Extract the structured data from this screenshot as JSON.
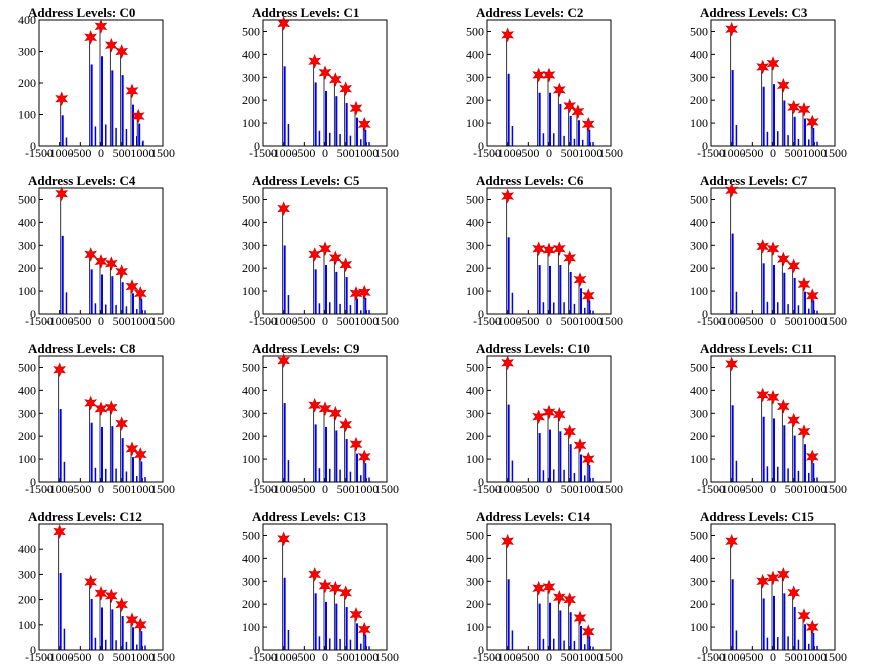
{
  "figure": {
    "layout": {
      "rows": 4,
      "cols": 4
    },
    "colors": {
      "histogram": "#0000ff",
      "histogram_outline": "#000000",
      "peak_marker": "#ff0000",
      "axis": "#000000"
    },
    "marker": "red-star"
  },
  "chart_data": [
    {
      "type": "bar",
      "title": "Address Levels: C0",
      "xlim": [
        -1500,
        1500
      ],
      "ylim": [
        0,
        400
      ],
      "xticks": [
        -1500,
        -1000,
        -500,
        0,
        500,
        1000,
        1500
      ],
      "yticks": [
        0,
        100,
        200,
        300,
        400
      ],
      "peaks": [
        {
          "x": -950,
          "y": 150
        },
        {
          "x": -250,
          "y": 345
        },
        {
          "x": 0,
          "y": 380
        },
        {
          "x": 250,
          "y": 320
        },
        {
          "x": 500,
          "y": 300
        },
        {
          "x": 750,
          "y": 175
        },
        {
          "x": 900,
          "y": 95
        }
      ]
    },
    {
      "type": "bar",
      "title": "Address Levels: C1",
      "xlim": [
        -1500,
        1500
      ],
      "ylim": [
        0,
        550
      ],
      "xticks": [
        -1500,
        -1000,
        -500,
        0,
        500,
        1000,
        1500
      ],
      "yticks": [
        0,
        100,
        200,
        300,
        400,
        500
      ],
      "peaks": [
        {
          "x": -1000,
          "y": 535
        },
        {
          "x": -250,
          "y": 370
        },
        {
          "x": 0,
          "y": 320
        },
        {
          "x": 250,
          "y": 290
        },
        {
          "x": 500,
          "y": 250
        },
        {
          "x": 750,
          "y": 165
        },
        {
          "x": 950,
          "y": 95
        }
      ]
    },
    {
      "type": "bar",
      "title": "Address Levels: C2",
      "xlim": [
        -1500,
        1500
      ],
      "ylim": [
        0,
        550
      ],
      "xticks": [
        -1500,
        -1000,
        -500,
        0,
        500,
        1000,
        1500
      ],
      "yticks": [
        0,
        100,
        200,
        300,
        400,
        500
      ],
      "peaks": [
        {
          "x": -1000,
          "y": 485
        },
        {
          "x": -250,
          "y": 310
        },
        {
          "x": 0,
          "y": 310
        },
        {
          "x": 250,
          "y": 245
        },
        {
          "x": 500,
          "y": 175
        },
        {
          "x": 700,
          "y": 150
        },
        {
          "x": 950,
          "y": 95
        }
      ]
    },
    {
      "type": "bar",
      "title": "Address Levels: C3",
      "xlim": [
        -1500,
        1500
      ],
      "ylim": [
        0,
        550
      ],
      "xticks": [
        -1500,
        -1000,
        -500,
        0,
        500,
        1000,
        1500
      ],
      "yticks": [
        0,
        100,
        200,
        300,
        400,
        500
      ],
      "peaks": [
        {
          "x": -1000,
          "y": 510
        },
        {
          "x": -250,
          "y": 345
        },
        {
          "x": 0,
          "y": 360
        },
        {
          "x": 250,
          "y": 265
        },
        {
          "x": 500,
          "y": 170
        },
        {
          "x": 750,
          "y": 160
        },
        {
          "x": 950,
          "y": 105
        }
      ]
    },
    {
      "type": "bar",
      "title": "Address Levels: C4",
      "xlim": [
        -1500,
        1500
      ],
      "ylim": [
        0,
        550
      ],
      "xticks": [
        -1500,
        -1000,
        -500,
        0,
        500,
        1000,
        1500
      ],
      "yticks": [
        0,
        100,
        200,
        300,
        400,
        500
      ],
      "peaks": [
        {
          "x": -950,
          "y": 525
        },
        {
          "x": -250,
          "y": 260
        },
        {
          "x": 0,
          "y": 230
        },
        {
          "x": 250,
          "y": 220
        },
        {
          "x": 500,
          "y": 185
        },
        {
          "x": 750,
          "y": 120
        },
        {
          "x": 950,
          "y": 90
        }
      ]
    },
    {
      "type": "bar",
      "title": "Address Levels: C5",
      "xlim": [
        -1500,
        1500
      ],
      "ylim": [
        0,
        550
      ],
      "xticks": [
        -1500,
        -1000,
        -500,
        0,
        500,
        1000,
        1500
      ],
      "yticks": [
        0,
        100,
        200,
        300,
        400,
        500
      ],
      "peaks": [
        {
          "x": -1000,
          "y": 460
        },
        {
          "x": -250,
          "y": 260
        },
        {
          "x": 0,
          "y": 285
        },
        {
          "x": 250,
          "y": 245
        },
        {
          "x": 500,
          "y": 215
        },
        {
          "x": 750,
          "y": 90
        },
        {
          "x": 950,
          "y": 95
        }
      ]
    },
    {
      "type": "bar",
      "title": "Address Levels: C6",
      "xlim": [
        -1500,
        1500
      ],
      "ylim": [
        0,
        550
      ],
      "xticks": [
        -1500,
        -1000,
        -500,
        0,
        500,
        1000,
        1500
      ],
      "yticks": [
        0,
        100,
        200,
        300,
        400,
        500
      ],
      "peaks": [
        {
          "x": -1000,
          "y": 515
        },
        {
          "x": -250,
          "y": 285
        },
        {
          "x": 0,
          "y": 280
        },
        {
          "x": 250,
          "y": 285
        },
        {
          "x": 500,
          "y": 245
        },
        {
          "x": 750,
          "y": 150
        },
        {
          "x": 950,
          "y": 80
        }
      ]
    },
    {
      "type": "bar",
      "title": "Address Levels: C7",
      "xlim": [
        -1500,
        1500
      ],
      "ylim": [
        0,
        550
      ],
      "xticks": [
        -1500,
        -1000,
        -500,
        0,
        500,
        1000,
        1500
      ],
      "yticks": [
        0,
        100,
        200,
        300,
        400,
        500
      ],
      "peaks": [
        {
          "x": -1000,
          "y": 540
        },
        {
          "x": -250,
          "y": 295
        },
        {
          "x": 0,
          "y": 285
        },
        {
          "x": 250,
          "y": 240
        },
        {
          "x": 500,
          "y": 210
        },
        {
          "x": 750,
          "y": 130
        },
        {
          "x": 950,
          "y": 80
        }
      ]
    },
    {
      "type": "bar",
      "title": "Address Levels: C8",
      "xlim": [
        -1500,
        1500
      ],
      "ylim": [
        0,
        550
      ],
      "xticks": [
        -1500,
        -1000,
        -500,
        0,
        500,
        1000,
        1500
      ],
      "yticks": [
        0,
        100,
        200,
        300,
        400,
        500
      ],
      "peaks": [
        {
          "x": -1000,
          "y": 490
        },
        {
          "x": -250,
          "y": 345
        },
        {
          "x": 0,
          "y": 320
        },
        {
          "x": 250,
          "y": 325
        },
        {
          "x": 500,
          "y": 255
        },
        {
          "x": 750,
          "y": 145
        },
        {
          "x": 950,
          "y": 120
        }
      ]
    },
    {
      "type": "bar",
      "title": "Address Levels: C9",
      "xlim": [
        -1500,
        1500
      ],
      "ylim": [
        0,
        550
      ],
      "xticks": [
        -1500,
        -1000,
        -500,
        0,
        500,
        1000,
        1500
      ],
      "yticks": [
        0,
        100,
        200,
        300,
        400,
        500
      ],
      "peaks": [
        {
          "x": -1000,
          "y": 530
        },
        {
          "x": -250,
          "y": 335
        },
        {
          "x": 0,
          "y": 320
        },
        {
          "x": 250,
          "y": 300
        },
        {
          "x": 500,
          "y": 250
        },
        {
          "x": 750,
          "y": 165
        },
        {
          "x": 950,
          "y": 110
        }
      ]
    },
    {
      "type": "bar",
      "title": "Address Levels: C10",
      "xlim": [
        -1500,
        1500
      ],
      "ylim": [
        0,
        550
      ],
      "xticks": [
        -1500,
        -1000,
        -500,
        0,
        500,
        1000,
        1500
      ],
      "yticks": [
        0,
        100,
        200,
        300,
        400,
        500
      ],
      "peaks": [
        {
          "x": -1000,
          "y": 520
        },
        {
          "x": -250,
          "y": 285
        },
        {
          "x": 0,
          "y": 305
        },
        {
          "x": 250,
          "y": 295
        },
        {
          "x": 500,
          "y": 220
        },
        {
          "x": 750,
          "y": 160
        },
        {
          "x": 950,
          "y": 100
        }
      ]
    },
    {
      "type": "bar",
      "title": "Address Levels: C11",
      "xlim": [
        -1500,
        1500
      ],
      "ylim": [
        0,
        550
      ],
      "xticks": [
        -1500,
        -1000,
        -500,
        0,
        500,
        1000,
        1500
      ],
      "yticks": [
        0,
        100,
        200,
        300,
        400,
        500
      ],
      "peaks": [
        {
          "x": -1000,
          "y": 515
        },
        {
          "x": -250,
          "y": 380
        },
        {
          "x": 0,
          "y": 370
        },
        {
          "x": 250,
          "y": 330
        },
        {
          "x": 500,
          "y": 270
        },
        {
          "x": 750,
          "y": 220
        },
        {
          "x": 950,
          "y": 110
        }
      ]
    },
    {
      "type": "bar",
      "title": "Address Levels: C12",
      "xlim": [
        -1500,
        1500
      ],
      "ylim": [
        0,
        500
      ],
      "xticks": [
        -1500,
        -1000,
        -500,
        0,
        500,
        1000,
        1500
      ],
      "yticks": [
        0,
        100,
        200,
        300,
        400
      ],
      "peaks": [
        {
          "x": -1000,
          "y": 470
        },
        {
          "x": -250,
          "y": 270
        },
        {
          "x": 0,
          "y": 225
        },
        {
          "x": 250,
          "y": 215
        },
        {
          "x": 500,
          "y": 180
        },
        {
          "x": 750,
          "y": 120
        },
        {
          "x": 950,
          "y": 100
        }
      ]
    },
    {
      "type": "bar",
      "title": "Address Levels: C13",
      "xlim": [
        -1500,
        1500
      ],
      "ylim": [
        0,
        550
      ],
      "xticks": [
        -1500,
        -1000,
        -500,
        0,
        500,
        1000,
        1500
      ],
      "yticks": [
        0,
        100,
        200,
        300,
        400,
        500
      ],
      "peaks": [
        {
          "x": -1000,
          "y": 485
        },
        {
          "x": -250,
          "y": 330
        },
        {
          "x": 0,
          "y": 280
        },
        {
          "x": 250,
          "y": 270
        },
        {
          "x": 500,
          "y": 250
        },
        {
          "x": 750,
          "y": 155
        },
        {
          "x": 950,
          "y": 90
        }
      ]
    },
    {
      "type": "bar",
      "title": "Address Levels: C14",
      "xlim": [
        -1500,
        1500
      ],
      "ylim": [
        0,
        550
      ],
      "xticks": [
        -1500,
        -1000,
        -500,
        0,
        500,
        1000,
        1500
      ],
      "yticks": [
        0,
        100,
        200,
        300,
        400,
        500
      ],
      "peaks": [
        {
          "x": -1000,
          "y": 475
        },
        {
          "x": -250,
          "y": 270
        },
        {
          "x": 0,
          "y": 275
        },
        {
          "x": 250,
          "y": 230
        },
        {
          "x": 500,
          "y": 220
        },
        {
          "x": 750,
          "y": 140
        },
        {
          "x": 950,
          "y": 80
        }
      ]
    },
    {
      "type": "bar",
      "title": "Address Levels: C15",
      "xlim": [
        -1500,
        1500
      ],
      "ylim": [
        0,
        550
      ],
      "xticks": [
        -1500,
        -1000,
        -500,
        0,
        500,
        1000,
        1500
      ],
      "yticks": [
        0,
        100,
        200,
        300,
        400,
        500
      ],
      "peaks": [
        {
          "x": -1000,
          "y": 475
        },
        {
          "x": -250,
          "y": 300
        },
        {
          "x": 0,
          "y": 315
        },
        {
          "x": 250,
          "y": 330
        },
        {
          "x": 500,
          "y": 250
        },
        {
          "x": 750,
          "y": 150
        },
        {
          "x": 950,
          "y": 100
        }
      ]
    }
  ]
}
